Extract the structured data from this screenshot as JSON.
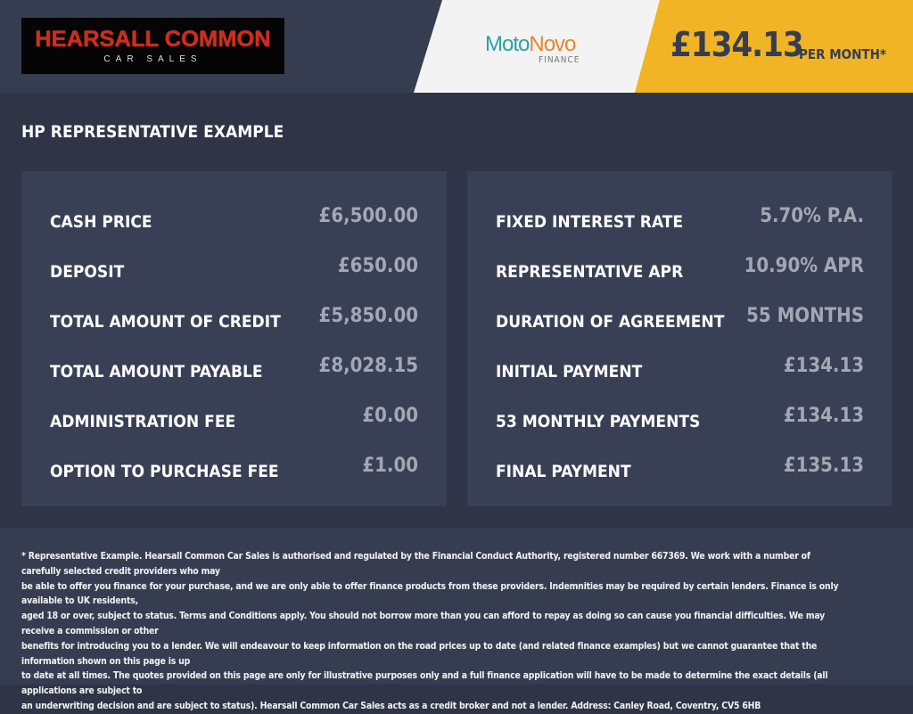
{
  "header": {
    "dealer_logo": "HEARSALL COMMON",
    "dealer_logo_sub": "CAR SALES",
    "lender_logo_a": "Moto",
    "lender_logo_b": "Novo",
    "lender_logo_sub": "FINANCE",
    "monthly_amount": "£134.13",
    "monthly_label": "PER MONTH*"
  },
  "title": "HP REPRESENTATIVE EXAMPLE",
  "left": [
    {
      "label": "CASH PRICE",
      "value": "£6,500.00"
    },
    {
      "label": "DEPOSIT",
      "value": "£650.00"
    },
    {
      "label": "TOTAL AMOUNT OF CREDIT",
      "value": "£5,850.00"
    },
    {
      "label": "TOTAL AMOUNT PAYABLE",
      "value": "£8,028.15"
    },
    {
      "label": "ADMINISTRATION FEE",
      "value": "£0.00"
    },
    {
      "label": "OPTION TO PURCHASE FEE",
      "value": "£1.00"
    }
  ],
  "right": [
    {
      "label": "FIXED INTEREST RATE",
      "value": "5.70% P.A."
    },
    {
      "label": "REPRESENTATIVE APR",
      "value": "10.90% APR"
    },
    {
      "label": "DURATION OF AGREEMENT",
      "value": "55 MONTHS"
    },
    {
      "label": "INITIAL PAYMENT",
      "value": "£134.13"
    },
    {
      "label": "53 MONTHLY PAYMENTS",
      "value": "£134.13"
    },
    {
      "label": "FINAL PAYMENT",
      "value": "£135.13"
    }
  ],
  "footer": [
    "* Representative Example. Hearsall Common Car Sales is authorised and regulated by the Financial Conduct Authority, registered number 667369. We work with a number of carefully selected credit providers who may",
    "be able to offer you finance for your purchase, and we are only able to offer finance products from these providers. Indemnities may be required by certain lenders. Finance is only available to UK residents,",
    "aged 18 or over, subject to status. Terms and Conditions apply. You should not borrow more than you can afford to repay as doing so can cause you financial difficulties. We may receive a commission or other",
    "benefits for introducing you to a lender. We will endeavour to keep information on the road prices up to date (and related finance examples) but we cannot guarantee that the information shown on this page is up",
    "to date at all times. The quotes provided on this page are only for illustrative purposes only and a full finance application will have to be made to determine the exact details (all applications are subject to",
    "an underwriting decision and are subject to status). Hearsall Common Car Sales acts as a credit broker and not a lender. Address: Canley Road, Coventry, CV5 6HB"
  ]
}
